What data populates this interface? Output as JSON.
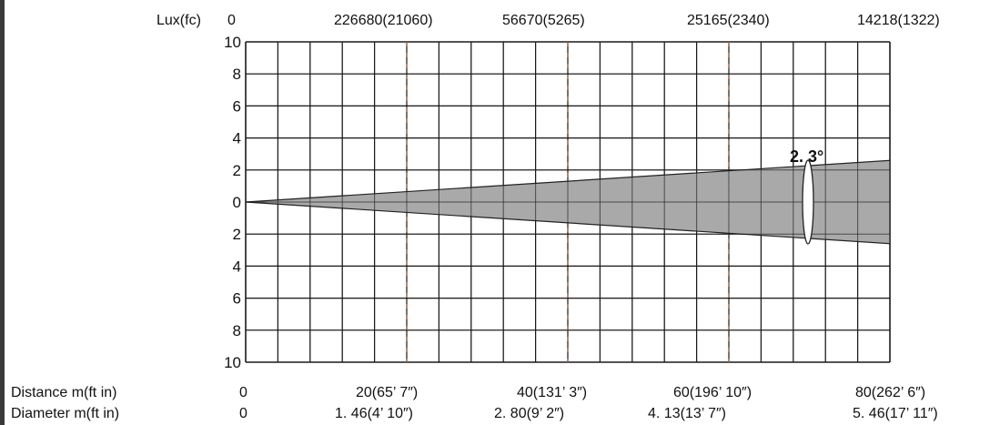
{
  "chart_data": {
    "type": "area",
    "title": "",
    "beam_angle_label": "2. 3°",
    "lux_row": {
      "label": "Lux(fc)",
      "values": [
        "0",
        "226680(21060)",
        "56670(5265)",
        "25165(2340)",
        "14218(1322)"
      ]
    },
    "distance_row": {
      "label": "Distance m(ft in)",
      "values": [
        "0",
        "20(65’ 7″)",
        "40(131’ 3″)",
        "60(196’ 10″)",
        "80(262’ 6″)"
      ]
    },
    "diameter_row": {
      "label": "Diameter m(ft in)",
      "values": [
        "0",
        "1. 46(4’ 10″)",
        "2. 80(9’ 2″)",
        "4. 13(13’ 7″)",
        "5. 46(17’ 11″)"
      ]
    },
    "y_tick_labels": [
      "10",
      "8",
      "6",
      "4",
      "2",
      "0",
      "2",
      "4",
      "6",
      "8",
      "10"
    ],
    "y_range": [
      -10,
      10
    ],
    "x_range": [
      0,
      80
    ],
    "reference_distances": [
      20,
      40,
      60
    ],
    "grid_columns": 20,
    "grid_rows": 10,
    "beam": {
      "distance": [
        0,
        80
      ],
      "half_width": [
        0,
        2.6
      ]
    },
    "colors": {
      "beam_fill": "#a0a0a0",
      "grid": "#1a1a1a",
      "ref_line": "#f0a070",
      "frame": "#000000"
    }
  }
}
